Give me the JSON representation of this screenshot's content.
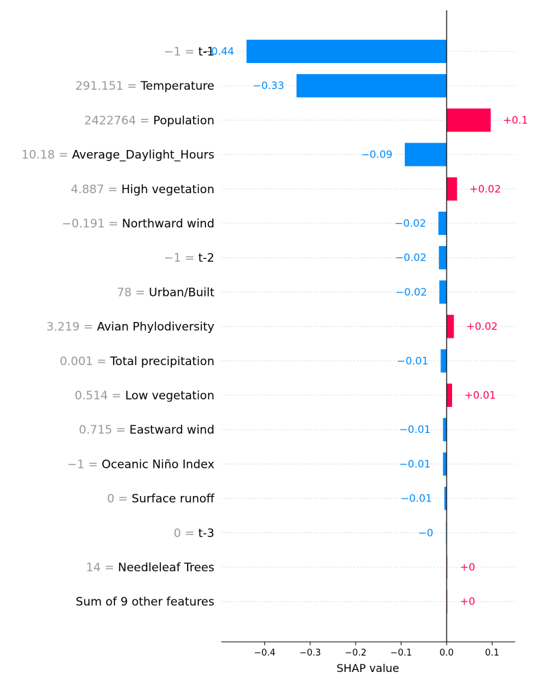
{
  "chart_data": {
    "type": "bar",
    "orientation": "horizontal",
    "xlabel": "SHAP value",
    "xlim": [
      -0.5,
      0.15
    ],
    "xticks": [
      {
        "value": -0.4,
        "label": "−0.4"
      },
      {
        "value": -0.3,
        "label": "−0.3"
      },
      {
        "value": -0.2,
        "label": "−0.2"
      },
      {
        "value": -0.1,
        "label": "−0.1"
      },
      {
        "value": 0.0,
        "label": "0.0"
      },
      {
        "value": 0.1,
        "label": "0.1"
      }
    ],
    "colors": {
      "positive": "#ff0051",
      "negative": "#008bfb",
      "value_text": "#999999"
    },
    "features": [
      {
        "value_text": "−1",
        "name": "t-1",
        "shap": -0.44,
        "label": "−0.44"
      },
      {
        "value_text": "291.151",
        "name": "Temperature",
        "shap": -0.33,
        "label": "−0.33"
      },
      {
        "value_text": "2422764",
        "name": "Population",
        "shap": 0.097,
        "label": "+0.1"
      },
      {
        "value_text": "10.18",
        "name": "Average_Daylight_Hours",
        "shap": -0.092,
        "label": "−0.09"
      },
      {
        "value_text": "4.887",
        "name": "High vegetation",
        "shap": 0.023,
        "label": "+0.02"
      },
      {
        "value_text": "−0.191",
        "name": "Northward wind",
        "shap": -0.018,
        "label": "−0.02"
      },
      {
        "value_text": "−1",
        "name": "t-2",
        "shap": -0.017,
        "label": "−0.02"
      },
      {
        "value_text": "78",
        "name": "Urban/Built",
        "shap": -0.016,
        "label": "−0.02"
      },
      {
        "value_text": "3.219",
        "name": "Avian Phylodiversity",
        "shap": 0.016,
        "label": "+0.02"
      },
      {
        "value_text": "0.001",
        "name": "Total precipitation",
        "shap": -0.013,
        "label": "−0.01"
      },
      {
        "value_text": "0.514",
        "name": "Low vegetation",
        "shap": 0.012,
        "label": "+0.01"
      },
      {
        "value_text": "0.715",
        "name": "Eastward wind",
        "shap": -0.008,
        "label": "−0.01"
      },
      {
        "value_text": "−1",
        "name": "Oceanic Niño Index",
        "shap": -0.008,
        "label": "−0.01"
      },
      {
        "value_text": "0",
        "name": "Surface runoff",
        "shap": -0.005,
        "label": "−0.01"
      },
      {
        "value_text": "0",
        "name": "t-3",
        "shap": -0.002,
        "label": "−0"
      },
      {
        "value_text": "14",
        "name": "Needleleaf Trees",
        "shap": 0.002,
        "label": "+0"
      },
      {
        "value_text": "",
        "name": "Sum of 9 other features",
        "shap": 0.002,
        "label": "+0"
      }
    ]
  }
}
